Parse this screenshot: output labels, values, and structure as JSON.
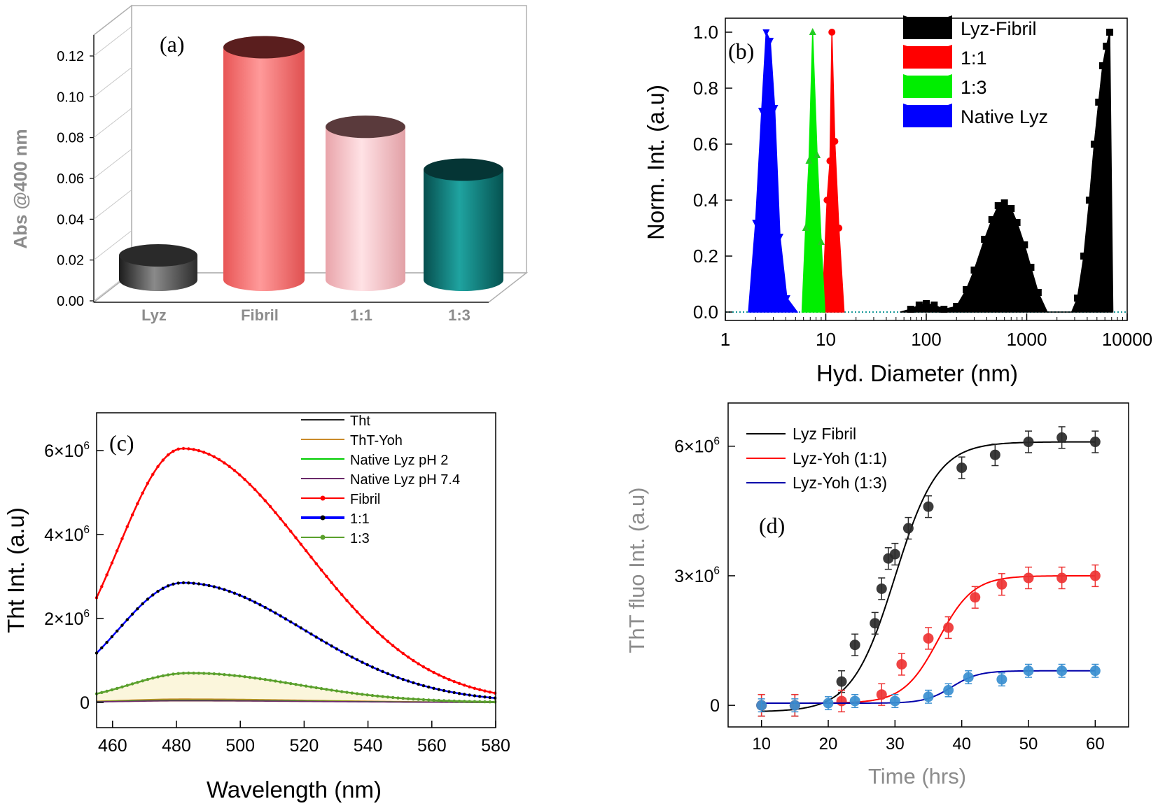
{
  "panels": [
    {
      "type": "bar3d",
      "panel_label": "(a)",
      "categories": [
        "Lyz",
        "Fibril",
        "1:1",
        "1:3"
      ],
      "values": [
        0.012,
        0.114,
        0.075,
        0.054
      ],
      "ylabel": "Abs @400 nm",
      "ylim": [
        0,
        0.12
      ],
      "yticks": [
        0.0,
        0.02,
        0.04,
        0.06,
        0.08,
        0.1,
        0.12
      ],
      "ytick_labels": [
        "0.00",
        "0.02",
        "0.04",
        "0.06",
        "0.08",
        "0.10",
        "0.12"
      ],
      "colors": [
        "#3a3a3a",
        "#f26b6b",
        "#f4b8bd",
        "#0a6d6b"
      ]
    },
    {
      "type": "area",
      "panel_label": "(b)",
      "xlabel": "Hyd. Diameter (nm)",
      "ylabel": "Norm. Int. (a.u)",
      "xscale": "log",
      "xlim": [
        1,
        10000
      ],
      "ylim": [
        0,
        1.05
      ],
      "xticks": [
        1,
        10,
        100,
        1000,
        10000
      ],
      "xtick_labels": [
        "1",
        "10",
        "100",
        "1000",
        "10000"
      ],
      "yticks": [
        0,
        0.2,
        0.4,
        0.6,
        0.8,
        1.0
      ],
      "ytick_labels": [
        "0.0",
        "0.2",
        "0.4",
        "0.6",
        "0.8",
        "1.0"
      ],
      "legend_position": "top-right",
      "series": [
        {
          "name": "Lyz-Fibril",
          "color": "#000000",
          "marker": "square",
          "x": [
            55,
            70,
            85,
            100,
            120,
            150,
            200,
            250,
            300,
            380,
            450,
            520,
            600,
            700,
            800,
            950,
            1100,
            1300,
            1600,
            2800,
            3200,
            3700,
            4200,
            4700,
            5200,
            5700,
            6200,
            6700,
            7200
          ],
          "y": [
            0,
            0.01,
            0.025,
            0.03,
            0.025,
            0.01,
            0.02,
            0.08,
            0.15,
            0.26,
            0.33,
            0.38,
            0.39,
            0.37,
            0.32,
            0.24,
            0.16,
            0.07,
            0,
            0,
            0.05,
            0.2,
            0.4,
            0.6,
            0.75,
            0.88,
            0.95,
            1.0,
            0
          ]
        },
        {
          "name": "1:1",
          "color": "#ff0000",
          "marker": "circle",
          "x": [
            9.2,
            10.3,
            11.0,
            11.5,
            12.3,
            13.5,
            15.2
          ],
          "y": [
            0,
            0.4,
            0.54,
            1.0,
            0.61,
            0.3,
            0
          ]
        },
        {
          "name": "1:3",
          "color": "#00ee00",
          "marker": "triangle-up",
          "x": [
            5.8,
            6.3,
            6.8,
            7.4,
            8.2,
            9.0,
            9.8
          ],
          "y": [
            0,
            0.3,
            0.54,
            1.0,
            0.56,
            0.25,
            0
          ]
        },
        {
          "name": "Native Lyz",
          "color": "#0000ff",
          "marker": "triangle-down",
          "x": [
            1.7,
            2.0,
            2.3,
            2.55,
            2.8,
            3.1,
            3.5,
            4.1,
            5.2
          ],
          "y": [
            0,
            0.32,
            0.72,
            1.0,
            0.97,
            0.73,
            0.27,
            0.05,
            0
          ]
        }
      ]
    },
    {
      "type": "line",
      "panel_label": "(c)",
      "xlabel": "Wavelength (nm)",
      "ylabel": "Tht Int. (a.u)",
      "xlim": [
        455,
        580
      ],
      "ylim": [
        -600000,
        6900000
      ],
      "xticks": [
        460,
        480,
        500,
        520,
        540,
        560,
        580
      ],
      "xtick_labels": [
        "460",
        "480",
        "500",
        "520",
        "540",
        "560",
        "580"
      ],
      "yticks": [
        0,
        2000000,
        4000000,
        6000000
      ],
      "ytick_labels": [
        {
          "base": "0",
          "exp": ""
        },
        {
          "base": "2×10",
          "exp": "6"
        },
        {
          "base": "4×10",
          "exp": "6"
        },
        {
          "base": "6×10",
          "exp": "6"
        }
      ],
      "legend_position": "top-right",
      "series": [
        {
          "name": "Tht",
          "color": "#222222",
          "peak": 482,
          "amp": 60000,
          "wl": 22,
          "wr": 48
        },
        {
          "name": "ThT-Yoh",
          "color": "#c98a2a",
          "peak": 482,
          "amp": 80000,
          "wl": 22,
          "wr": 48
        },
        {
          "name": "Native Lyz pH 2",
          "color": "#00cc00",
          "peak": 482,
          "amp": 50000,
          "wl": 22,
          "wr": 48
        },
        {
          "name": "Native  Lyz pH 7.4",
          "color": "#6a2a6a",
          "peak": 482,
          "amp": 40000,
          "wl": 22,
          "wr": 48
        },
        {
          "name": "Fibril",
          "color": "#ff0000",
          "peak": 482,
          "amp": 6050000,
          "wl": 24,
          "wr": 45
        },
        {
          "name": "1:1",
          "color": "#0000ff",
          "dot_color": "#000000",
          "peak": 482,
          "amp": 2850000,
          "wl": 24,
          "wr": 45
        },
        {
          "name": "1:3",
          "color": "#5aa02c",
          "peak": 484,
          "amp": 700000,
          "wl": 22,
          "wr": 40
        }
      ]
    },
    {
      "type": "scatter",
      "panel_label": "(d)",
      "xlabel": "Time (hrs)",
      "ylabel": "ThT fluo Int. (a.u)",
      "xlim": [
        5,
        65
      ],
      "ylim": [
        -500000,
        7000000
      ],
      "xticks": [
        10,
        20,
        30,
        40,
        50,
        60
      ],
      "xtick_labels": [
        "10",
        "20",
        "30",
        "40",
        "50",
        "60"
      ],
      "yticks": [
        0,
        3000000,
        6000000
      ],
      "ytick_labels": [
        {
          "base": "0",
          "exp": ""
        },
        {
          "base": "3×10",
          "exp": "6"
        },
        {
          "base": "6×10",
          "exp": "6"
        }
      ],
      "legend_position": "top-left",
      "series": [
        {
          "name": "Lyz Fibril",
          "color": "#000000",
          "point_color": "#2a2a2a",
          "x": [
            10,
            15,
            22,
            24,
            27,
            28,
            29,
            30,
            32,
            35,
            40,
            45,
            50,
            55,
            60
          ],
          "y": [
            0,
            0,
            550000,
            1400000,
            1900000,
            2700000,
            3400000,
            3500000,
            4100000,
            4600000,
            5500000,
            5800000,
            6100000,
            6200000,
            6100000
          ],
          "err": [
            250000,
            250000,
            250000,
            250000,
            250000,
            250000,
            250000,
            250000,
            250000,
            250000,
            250000,
            250000,
            250000,
            250000,
            250000
          ],
          "fit": {
            "A1": -150000,
            "A2": 6100000,
            "x0": 30,
            "dx": 3.2
          }
        },
        {
          "name": "Lyz-Yoh (1:1)",
          "color": "#ff0000",
          "point_color": "#ee3333",
          "x": [
            10,
            15,
            22,
            28,
            31,
            35,
            38,
            42,
            46,
            50,
            55,
            60
          ],
          "y": [
            0,
            0,
            100000,
            250000,
            950000,
            1550000,
            1800000,
            2500000,
            2800000,
            2950000,
            2950000,
            3000000
          ],
          "err": [
            250000,
            250000,
            250000,
            250000,
            250000,
            250000,
            250000,
            250000,
            250000,
            250000,
            250000,
            250000
          ],
          "fit": {
            "A1": 50000,
            "A2": 3000000,
            "x0": 36.5,
            "dx": 2.6
          }
        },
        {
          "name": "Lyz-Yoh (1:3)",
          "color": "#0000aa",
          "point_color": "#3a8fd0",
          "x": [
            10,
            15,
            20,
            24,
            30,
            35,
            38,
            41,
            46,
            50,
            55,
            60
          ],
          "y": [
            0,
            0,
            50000,
            100000,
            100000,
            200000,
            350000,
            650000,
            600000,
            800000,
            800000,
            800000
          ],
          "err": [
            150000,
            150000,
            150000,
            150000,
            150000,
            150000,
            150000,
            150000,
            150000,
            150000,
            150000,
            150000
          ],
          "fit": {
            "A1": 50000,
            "A2": 800000,
            "x0": 38.5,
            "dx": 2.0
          }
        }
      ]
    }
  ]
}
